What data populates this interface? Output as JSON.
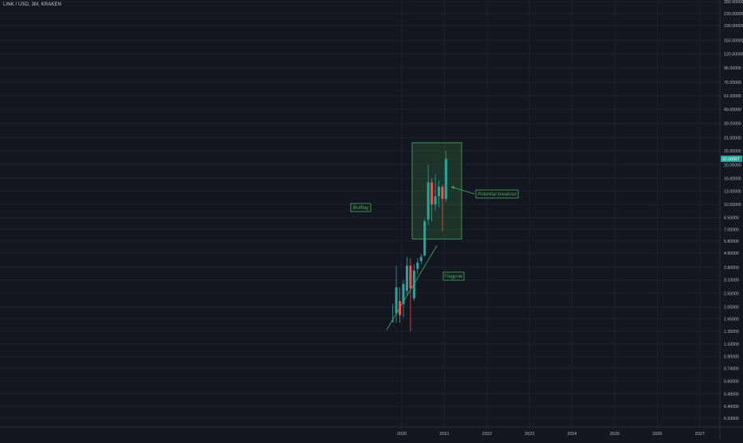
{
  "header": {
    "symbol_title": "LINK / USD, 3M, KRAKEN"
  },
  "colors": {
    "background": "#131722",
    "grid": "#1e2230",
    "up": "#26a69a",
    "down": "#ef5350",
    "axis_text": "#b2b5be",
    "annotation": "#4caf50",
    "price_badge": "#26a69a"
  },
  "chart_data": {
    "type": "candlestick",
    "scale": "log",
    "ylim": [
      0.33,
      280
    ],
    "xlim": [
      "2019-07-01",
      "2027-09-01"
    ],
    "y_tick_labels": [
      "280.00000",
      "230.00000",
      "190.00000",
      "150.00000",
      "120.00000",
      "96.00000",
      "76.00000",
      "61.00000",
      "49.00000",
      "39.00000",
      "31.00000",
      "25.00000",
      "20.00000",
      "16.00000",
      "13.00000",
      "10.50000",
      "8.50000",
      "7.00000",
      "5.80000",
      "4.80000",
      "3.80000",
      "3.10000",
      "2.50000",
      "2.00000",
      "1.65000",
      "1.35000",
      "1.10000",
      "0.90000",
      "0.74000",
      "0.60000",
      "0.49000",
      "0.40000",
      "0.33000"
    ],
    "x_tick_labels": [
      "2020",
      "2021",
      "2022",
      "2023",
      "2024",
      "2025",
      "2026",
      "2027"
    ],
    "current_price": "22.00907",
    "candles": [
      {
        "date": "2019-10-01",
        "open": 1.6,
        "high": 2.1,
        "low": 1.55,
        "close": 1.6
      },
      {
        "date": "2019-11-01",
        "open": 1.8,
        "high": 3.9,
        "low": 1.55,
        "close": 2.75
      },
      {
        "date": "2019-12-01",
        "open": 2.2,
        "high": 2.75,
        "low": 1.55,
        "close": 1.75
      },
      {
        "date": "2020-01-01",
        "open": 2.1,
        "high": 3.1,
        "low": 1.7,
        "close": 2.9
      },
      {
        "date": "2020-02-01",
        "open": 2.6,
        "high": 4.5,
        "low": 2.4,
        "close": 3.9
      },
      {
        "date": "2020-03-01",
        "open": 3.9,
        "high": 4.4,
        "low": 1.35,
        "close": 2.7
      },
      {
        "date": "2020-04-01",
        "open": 2.3,
        "high": 4.0,
        "low": 2.2,
        "close": 3.6
      },
      {
        "date": "2020-05-01",
        "open": 3.7,
        "high": 4.4,
        "low": 3.4,
        "close": 4.1
      },
      {
        "date": "2020-06-01",
        "open": 4.2,
        "high": 4.7,
        "low": 4.0,
        "close": 4.5
      },
      {
        "date": "2020-07-01",
        "open": 4.6,
        "high": 8.3,
        "low": 4.5,
        "close": 8.0
      },
      {
        "date": "2020-08-01",
        "open": 8.2,
        "high": 20.0,
        "low": 7.5,
        "close": 15.0
      },
      {
        "date": "2020-09-01",
        "open": 15.0,
        "high": 16.0,
        "low": 8.0,
        "close": 10.5
      },
      {
        "date": "2020-10-01",
        "open": 10.5,
        "high": 17.0,
        "low": 9.5,
        "close": 12.0
      },
      {
        "date": "2020-11-01",
        "open": 12.0,
        "high": 15.5,
        "low": 10.0,
        "close": 14.0
      },
      {
        "date": "2020-12-01",
        "open": 14.0,
        "high": 14.5,
        "low": 6.8,
        "close": 11.5
      },
      {
        "date": "2021-01-01",
        "open": 11.5,
        "high": 25.0,
        "low": 11.0,
        "close": 22.0
      }
    ],
    "annotations": [
      {
        "type": "label",
        "text": "Bullflag"
      },
      {
        "type": "label",
        "text": "Flagpole"
      },
      {
        "type": "label",
        "text": "Potential breakout"
      }
    ]
  }
}
